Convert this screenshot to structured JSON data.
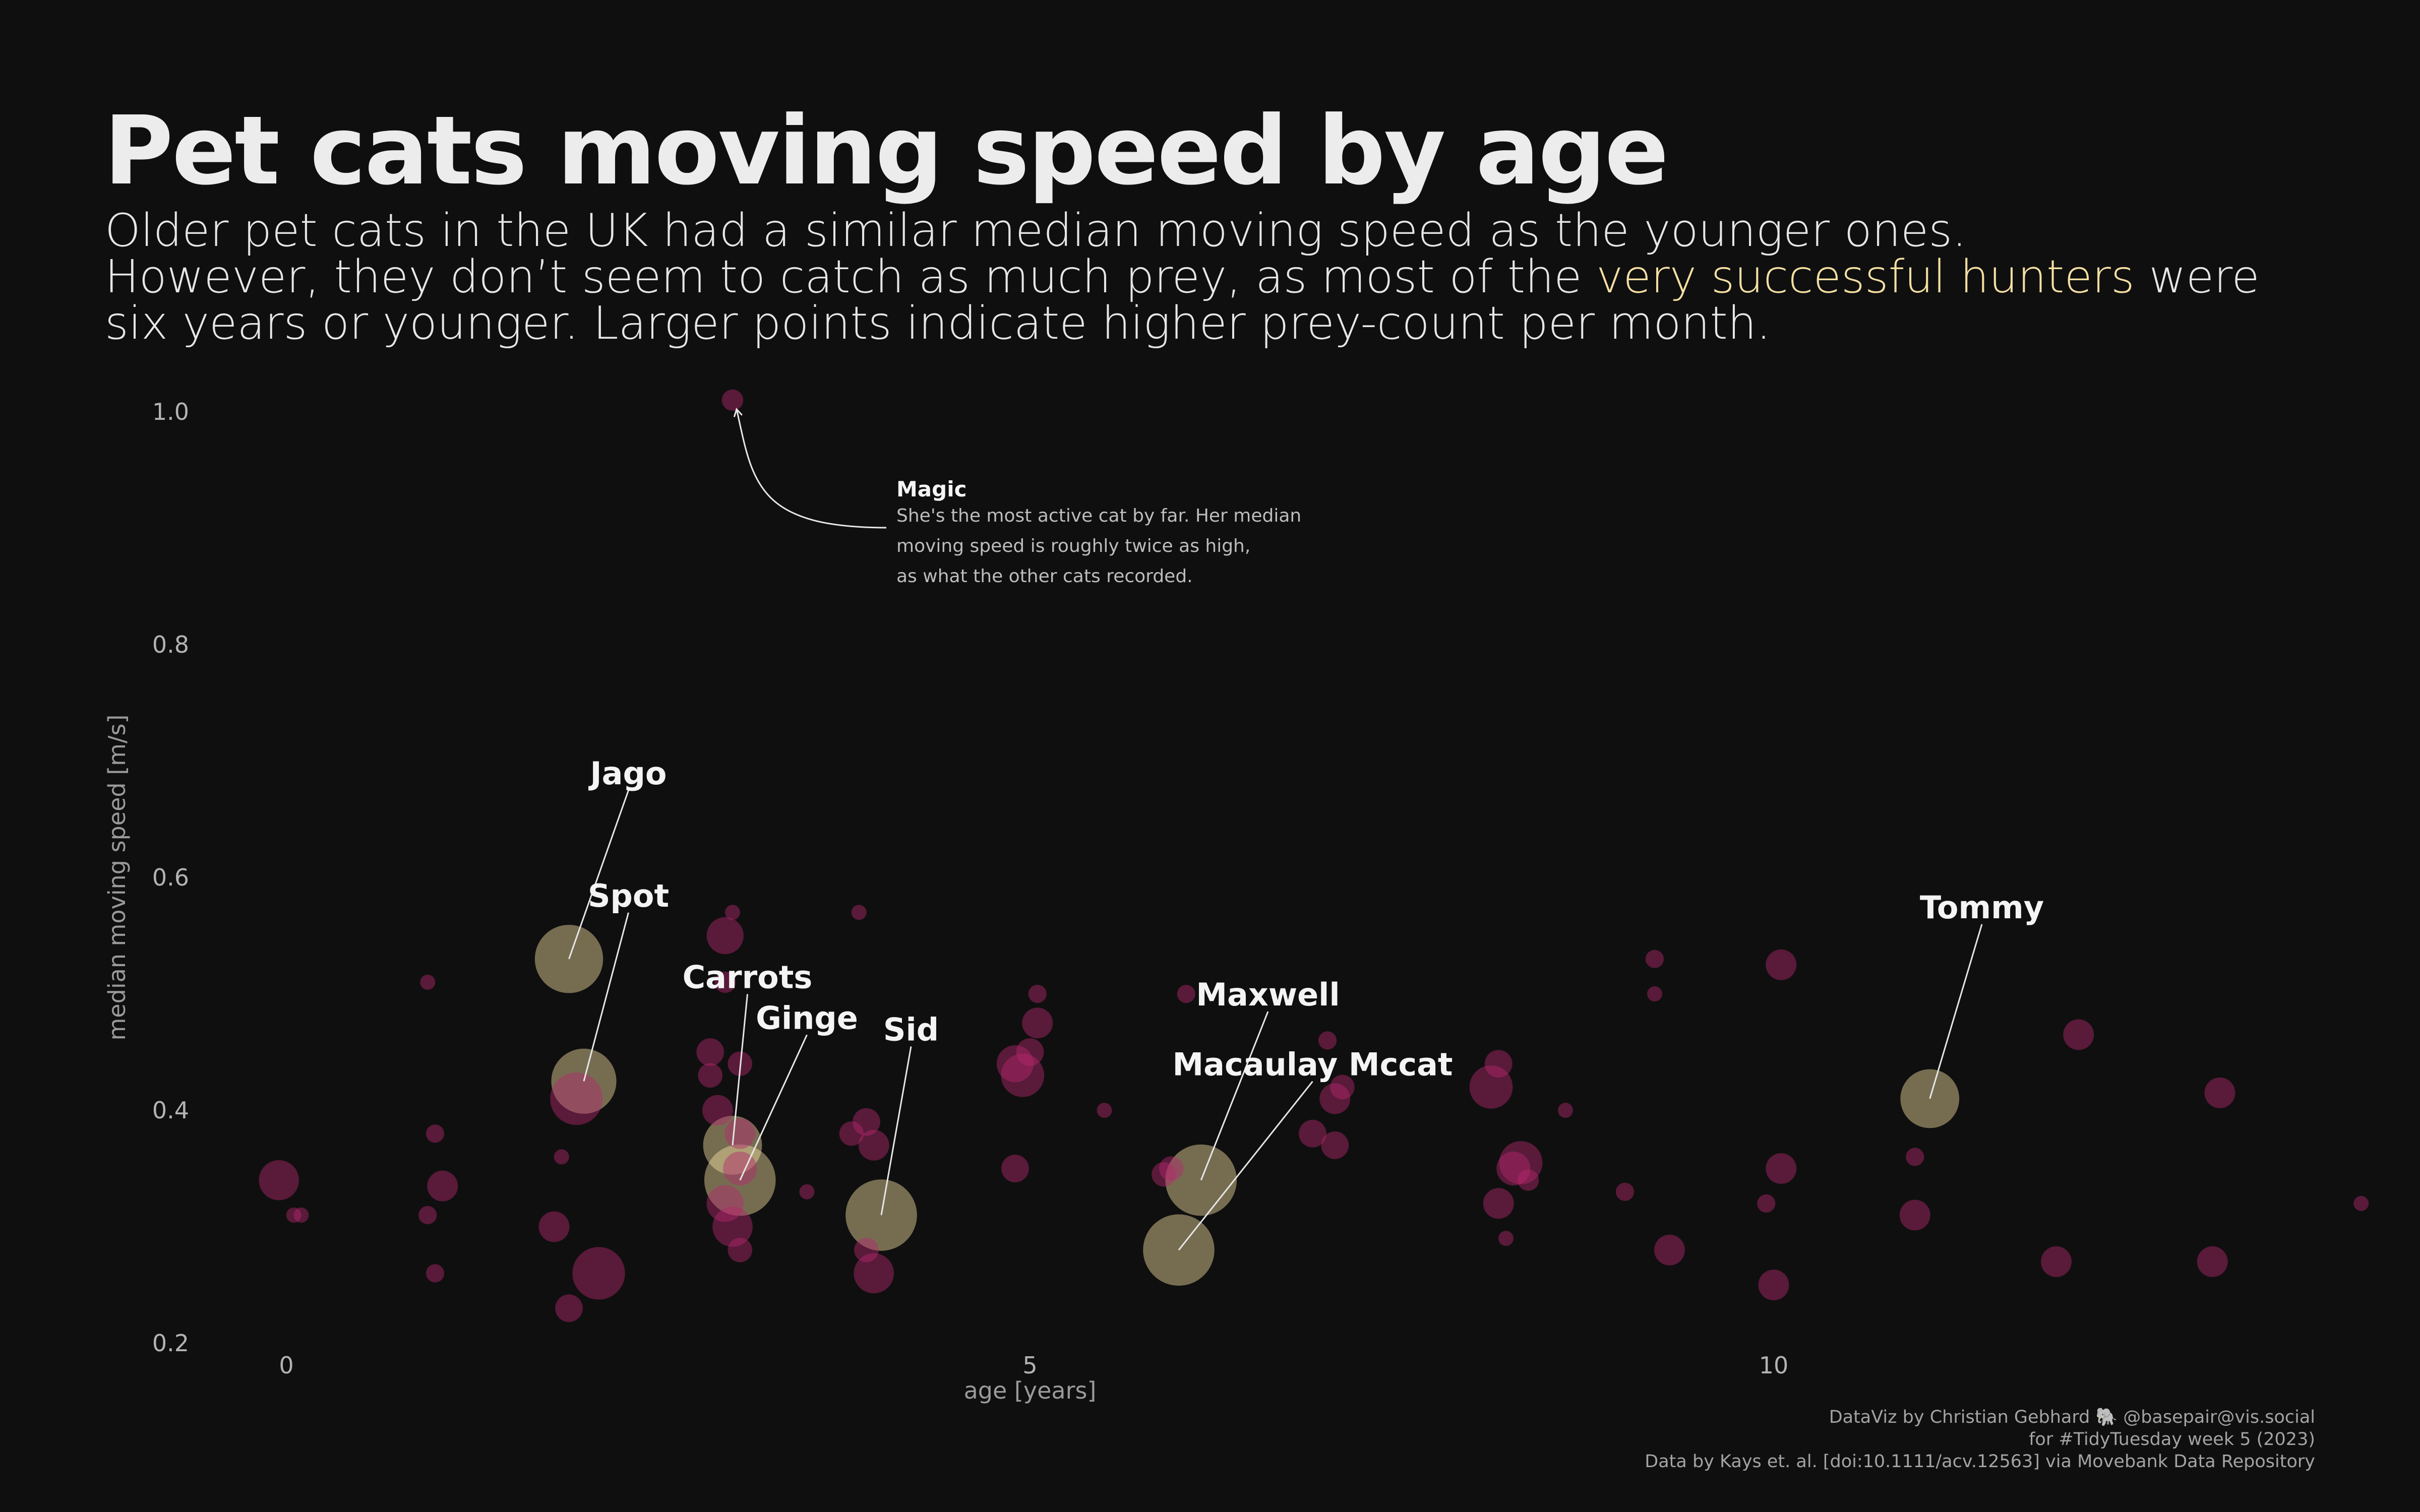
{
  "title": "Pet cats moving speed by age",
  "subtitle": {
    "line1": "Older pet cats in the UK had a similar median moving speed as the younger ones.",
    "line2_before": "However, they don’t seem to catch as much prey, as most of the ",
    "line2_highlight": "very successful hunters",
    "line2_after": "  were",
    "line3": "six years or younger. Larger points indicate higher prey-count per month."
  },
  "credits": {
    "line1": "DataViz by Christian Gebhard 🐘 @basepair@vis.social",
    "line2": "for #TidyTuesday week 5 (2023)",
    "line3": "Data by Kays et. al. [doi:10.1111/acv.12563] via Movebank Data Repository"
  },
  "colors": {
    "background": "#0f0f0f",
    "regular": "#b5286e",
    "hunter": "#f5dfa2",
    "text": "#ececec"
  },
  "annotation": {
    "title": "Magic",
    "lines": [
      "She's the most active cat by far. Her median",
      "moving speed is roughly twice as high,",
      "as what the other cats recorded."
    ],
    "target": {
      "x": 3.0,
      "y": 1.01
    }
  },
  "chart_data": {
    "type": "scatter",
    "xlabel": "age [years]",
    "ylabel": "median moving speed [m/s]",
    "xlim": [
      -0.8,
      14.1
    ],
    "ylim": [
      0.2,
      1.05
    ],
    "xticks": [
      0,
      5,
      10
    ],
    "yticks": [
      0.2,
      0.4,
      0.6,
      0.8,
      1.0
    ],
    "grid": false,
    "legend": "none",
    "size_variable": "prey per month",
    "points": [
      {
        "x": -0.05,
        "y": 0.34,
        "prey": 8
      },
      {
        "x": 0.05,
        "y": 0.31,
        "prey": 0
      },
      {
        "x": 0.1,
        "y": 0.31,
        "prey": 0
      },
      {
        "x": 1.0,
        "y": 0.38,
        "prey": 1
      },
      {
        "x": 0.95,
        "y": 0.31,
        "prey": 1
      },
      {
        "x": 1.05,
        "y": 0.335,
        "prey": 5
      },
      {
        "x": 1.0,
        "y": 0.26,
        "prey": 1
      },
      {
        "x": 0.95,
        "y": 0.51,
        "prey": 0
      },
      {
        "x": 1.8,
        "y": 0.3,
        "prey": 5
      },
      {
        "x": 1.9,
        "y": 0.23,
        "prey": 4
      },
      {
        "x": 1.85,
        "y": 0.36,
        "prey": 0
      },
      {
        "x": 2.1,
        "y": 0.26,
        "prey": 12
      },
      {
        "x": 1.95,
        "y": 0.41,
        "prey": 12
      },
      {
        "x": 2.0,
        "y": 0.425,
        "prey": 16,
        "name": "Spot",
        "hunter": true
      },
      {
        "x": 1.9,
        "y": 0.53,
        "prey": 17,
        "name": "Jago",
        "hunter": true
      },
      {
        "x": 3.0,
        "y": 1.01,
        "prey": 2
      },
      {
        "x": 2.95,
        "y": 0.55,
        "prey": 7
      },
      {
        "x": 3.0,
        "y": 0.57,
        "prey": 0
      },
      {
        "x": 2.95,
        "y": 0.51,
        "prey": 2
      },
      {
        "x": 2.85,
        "y": 0.45,
        "prey": 4
      },
      {
        "x": 2.85,
        "y": 0.43,
        "prey": 3
      },
      {
        "x": 3.05,
        "y": 0.44,
        "prey": 3
      },
      {
        "x": 2.9,
        "y": 0.4,
        "prey": 5
      },
      {
        "x": 3.05,
        "y": 0.38,
        "prey": 5
      },
      {
        "x": 3.05,
        "y": 0.35,
        "prey": 6
      },
      {
        "x": 2.95,
        "y": 0.32,
        "prey": 7
      },
      {
        "x": 3.0,
        "y": 0.3,
        "prey": 8
      },
      {
        "x": 3.05,
        "y": 0.28,
        "prey": 3
      },
      {
        "x": 3.0,
        "y": 0.37,
        "prey": 14,
        "name": "Carrots",
        "hunter": true
      },
      {
        "x": 3.05,
        "y": 0.34,
        "prey": 18,
        "name": "Ginge",
        "hunter": true
      },
      {
        "x": 3.8,
        "y": 0.38,
        "prey": 3
      },
      {
        "x": 3.9,
        "y": 0.39,
        "prey": 4
      },
      {
        "x": 3.95,
        "y": 0.37,
        "prey": 5
      },
      {
        "x": 3.9,
        "y": 0.28,
        "prey": 3
      },
      {
        "x": 3.95,
        "y": 0.26,
        "prey": 8
      },
      {
        "x": 3.85,
        "y": 0.57,
        "prey": 0
      },
      {
        "x": 3.5,
        "y": 0.33,
        "prey": 0
      },
      {
        "x": 4.0,
        "y": 0.31,
        "prey": 18,
        "name": "Sid",
        "hunter": true
      },
      {
        "x": 4.9,
        "y": 0.44,
        "prey": 7
      },
      {
        "x": 4.95,
        "y": 0.43,
        "prey": 9
      },
      {
        "x": 5.05,
        "y": 0.475,
        "prey": 5
      },
      {
        "x": 5.0,
        "y": 0.45,
        "prey": 4
      },
      {
        "x": 5.05,
        "y": 0.5,
        "prey": 1
      },
      {
        "x": 4.9,
        "y": 0.35,
        "prey": 4
      },
      {
        "x": 5.5,
        "y": 0.4,
        "prey": 0
      },
      {
        "x": 5.9,
        "y": 0.345,
        "prey": 3
      },
      {
        "x": 5.95,
        "y": 0.35,
        "prey": 3
      },
      {
        "x": 6.05,
        "y": 0.5,
        "prey": 1
      },
      {
        "x": 6.15,
        "y": 0.34,
        "prey": 18,
        "name": "Maxwell",
        "hunter": true
      },
      {
        "x": 6.0,
        "y": 0.28,
        "prey": 18,
        "name": "Macaulay Mccat",
        "hunter": true
      },
      {
        "x": 6.9,
        "y": 0.38,
        "prey": 4
      },
      {
        "x": 7.05,
        "y": 0.41,
        "prey": 5
      },
      {
        "x": 7.05,
        "y": 0.37,
        "prey": 4
      },
      {
        "x": 7.1,
        "y": 0.42,
        "prey": 3
      },
      {
        "x": 7.0,
        "y": 0.46,
        "prey": 1
      },
      {
        "x": 8.1,
        "y": 0.42,
        "prey": 9
      },
      {
        "x": 8.15,
        "y": 0.44,
        "prey": 4
      },
      {
        "x": 8.3,
        "y": 0.355,
        "prey": 9
      },
      {
        "x": 8.25,
        "y": 0.35,
        "prey": 6
      },
      {
        "x": 8.35,
        "y": 0.34,
        "prey": 2
      },
      {
        "x": 8.15,
        "y": 0.32,
        "prey": 5
      },
      {
        "x": 8.2,
        "y": 0.29,
        "prey": 0
      },
      {
        "x": 8.6,
        "y": 0.4,
        "prey": 0
      },
      {
        "x": 9.2,
        "y": 0.53,
        "prey": 1
      },
      {
        "x": 9.0,
        "y": 0.33,
        "prey": 1
      },
      {
        "x": 9.3,
        "y": 0.28,
        "prey": 5
      },
      {
        "x": 9.2,
        "y": 0.5,
        "prey": 0
      },
      {
        "x": 10.05,
        "y": 0.525,
        "prey": 5
      },
      {
        "x": 10.05,
        "y": 0.35,
        "prey": 5
      },
      {
        "x": 9.95,
        "y": 0.32,
        "prey": 1
      },
      {
        "x": 10.0,
        "y": 0.25,
        "prey": 5
      },
      {
        "x": 10.95,
        "y": 0.36,
        "prey": 1
      },
      {
        "x": 10.95,
        "y": 0.31,
        "prey": 5
      },
      {
        "x": 11.05,
        "y": 0.41,
        "prey": 14,
        "name": "Tommy",
        "hunter": true
      },
      {
        "x": 12.05,
        "y": 0.465,
        "prey": 5
      },
      {
        "x": 11.9,
        "y": 0.27,
        "prey": 5
      },
      {
        "x": 13.0,
        "y": 0.415,
        "prey": 5
      },
      {
        "x": 12.95,
        "y": 0.27,
        "prey": 5
      },
      {
        "x": 13.95,
        "y": 0.32,
        "prey": 0
      }
    ],
    "labels": [
      {
        "name": "Jago",
        "lx": 2.3,
        "ly": 0.68
      },
      {
        "name": "Spot",
        "lx": 2.3,
        "ly": 0.575
      },
      {
        "name": "Carrots",
        "lx": 3.1,
        "ly": 0.505
      },
      {
        "name": "Ginge",
        "lx": 3.5,
        "ly": 0.47
      },
      {
        "name": "Sid",
        "lx": 4.2,
        "ly": 0.46
      },
      {
        "name": "Maxwell",
        "lx": 6.6,
        "ly": 0.49
      },
      {
        "name": "Macaulay Mccat",
        "lx": 6.9,
        "ly": 0.43
      },
      {
        "name": "Tommy",
        "lx": 11.4,
        "ly": 0.565
      }
    ]
  }
}
